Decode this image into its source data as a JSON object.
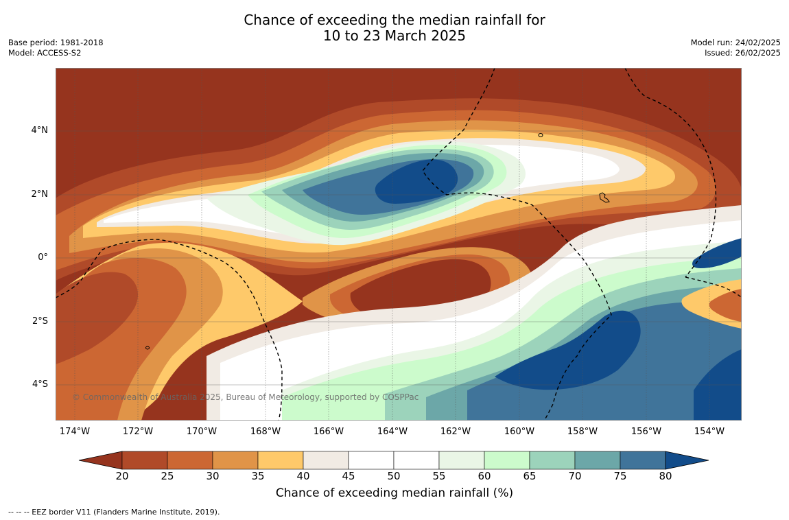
{
  "title_line1": "Chance of exceeding the median rainfall for",
  "title_line2": "10 to 23 March 2025",
  "base_period": "Base period: 1981-2018",
  "model": "Model: ACCESS-S2",
  "model_run": "Model run: 24/02/2025",
  "issued": "Issued: 26/02/2025",
  "copyright": "© Commonwealth of Australia 2025, Bureau of Meteorology, supported by COSPPac",
  "lat_labels": [
    "4°N",
    "2°N",
    "0°",
    "2°S",
    "4°S"
  ],
  "lon_labels": [
    "174°W",
    "172°W",
    "170°W",
    "168°W",
    "166°W",
    "164°W",
    "162°W",
    "160°W",
    "158°W",
    "156°W",
    "154°W"
  ],
  "colorbar": {
    "ticks": [
      "20",
      "25",
      "30",
      "35",
      "40",
      "45",
      "50",
      "55",
      "60",
      "65",
      "70",
      "75",
      "80"
    ],
    "title": "Chance of exceeding median rainfall (%)",
    "colors": [
      "#96341e",
      "#b04a29",
      "#cc6733",
      "#e09448",
      "#fec96a",
      "#f1ebe4",
      "#ffffff",
      "#ffffff",
      "#eaf6e6",
      "#ccfbcc",
      "#9cd3bb",
      "#6ca7a8",
      "#40749a",
      "#124c8a"
    ]
  },
  "footnote": "--  --  -- EEZ border V11 (Flanders Marine Institute, 2019)."
}
